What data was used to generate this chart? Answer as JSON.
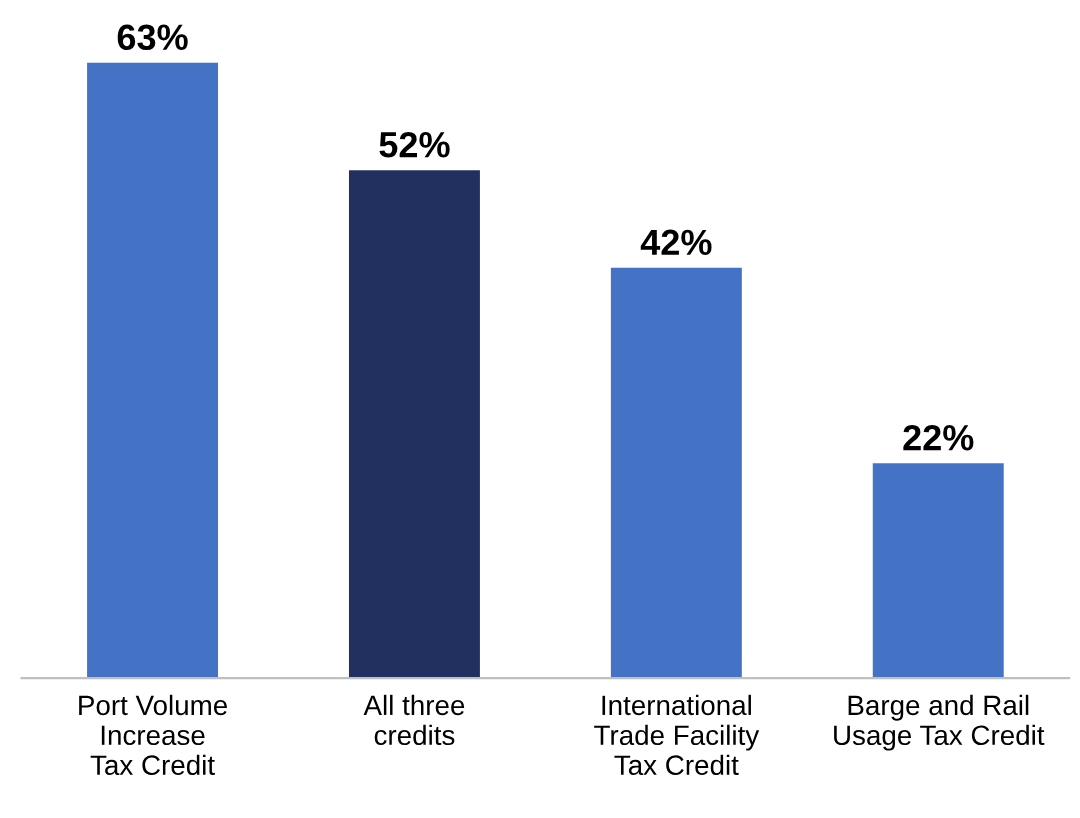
{
  "chart_data": {
    "type": "bar",
    "categories": [
      "Port Volume\nIncrease\nTax Credit",
      "All three\ncredits",
      "International\nTrade Facility\nTax Credit",
      "Barge and Rail\nUsage Tax Credit"
    ],
    "values": [
      63,
      52,
      42,
      22
    ],
    "colors": [
      "#4472c4",
      "#21305f",
      "#4472c4",
      "#4472c4"
    ],
    "value_labels": [
      "63%",
      "52%",
      "42%",
      "22%"
    ],
    "grid": false,
    "legend": false
  }
}
